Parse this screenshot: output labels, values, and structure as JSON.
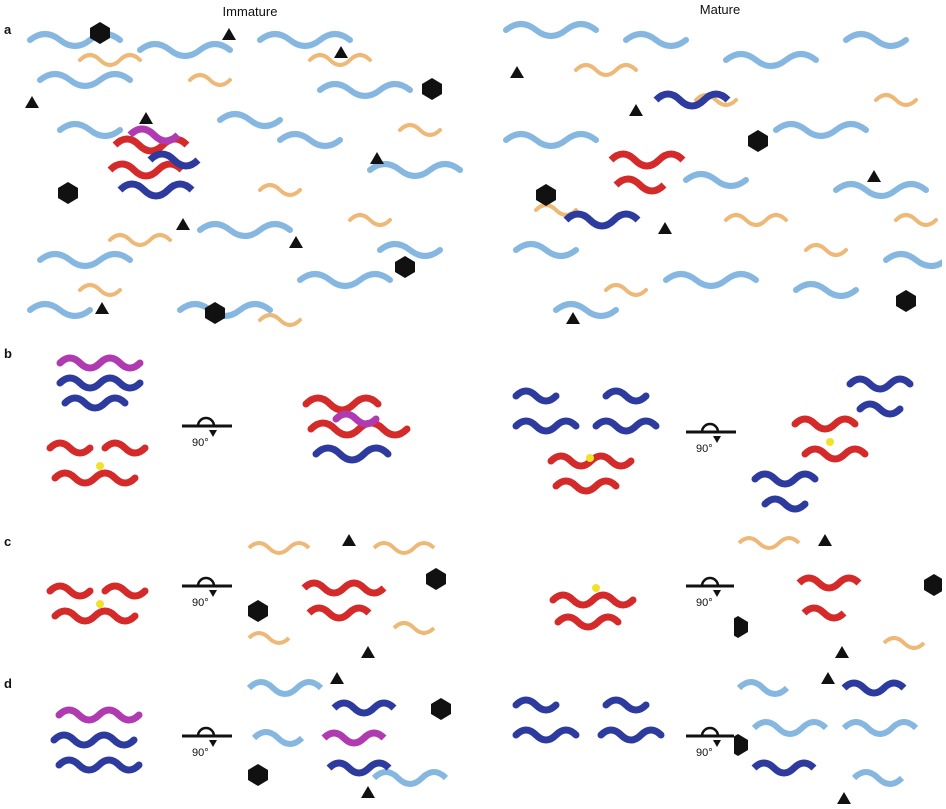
{
  "figure": {
    "panel_labels": [
      "a",
      "b",
      "c",
      "d"
    ],
    "column_titles": {
      "left": "Immature",
      "right": "Mature"
    },
    "rotation_label": "90°"
  },
  "colors": {
    "light_blue": "#86b7e0",
    "orange": "#eeb877",
    "dark_blue": "#2d3a9e",
    "red": "#d42a2a",
    "magenta": "#b03ab0",
    "yellow": "#f2e12b",
    "green": "#3aa83a",
    "cyan": "#3fc0c8",
    "symbol": "#111111"
  }
}
